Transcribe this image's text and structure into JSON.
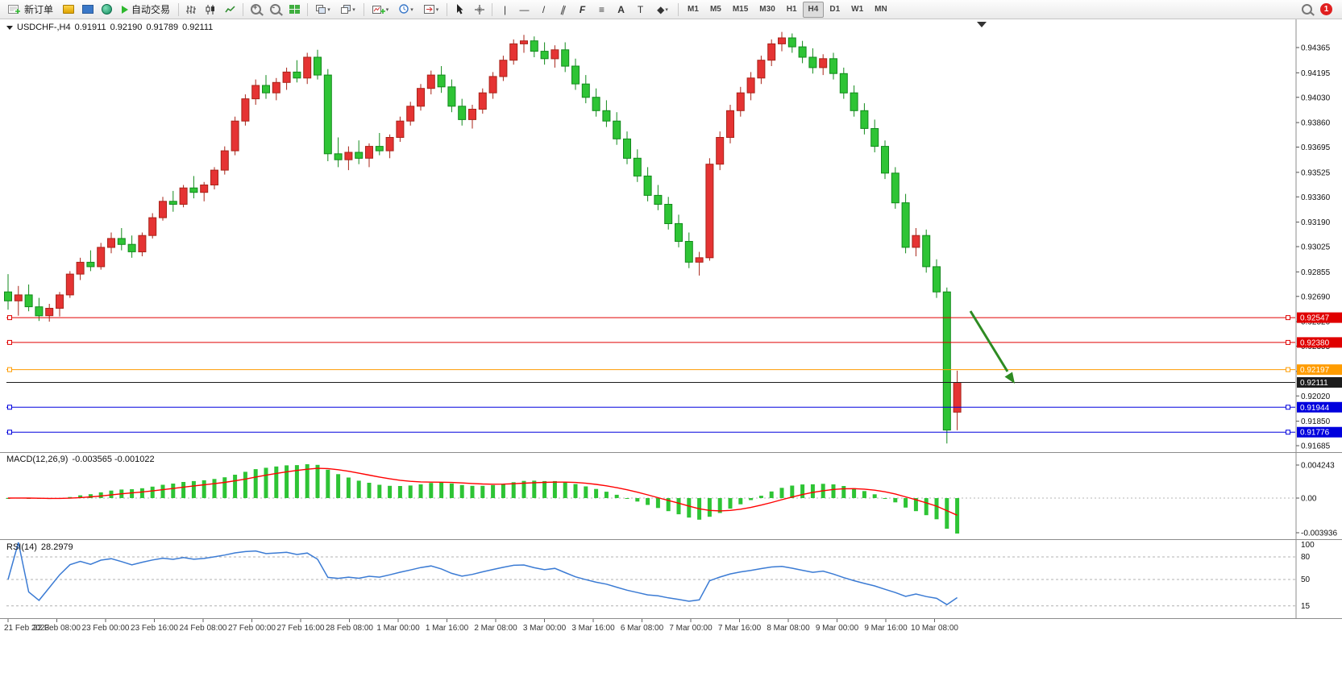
{
  "toolbar": {
    "new_order_label": "新订单",
    "auto_trading_label": "自动交易",
    "timeframes": [
      "M1",
      "M5",
      "M15",
      "M30",
      "H1",
      "H4",
      "D1",
      "W1",
      "MN"
    ],
    "active_timeframe": "H4",
    "notification_count": "1"
  },
  "chart": {
    "symbol_label": "USDCHF-,H4",
    "ohlc": {
      "open": "0.91911",
      "high": "0.92190",
      "low": "0.91789",
      "close": "0.92111"
    },
    "price_axis": {
      "top_value": 0.94365,
      "bottom_value": 0.91685,
      "ticks": [
        "0.94365",
        "0.94195",
        "0.94030",
        "0.93860",
        "0.93695",
        "0.93525",
        "0.93360",
        "0.93190",
        "0.93025",
        "0.92855",
        "0.92690",
        "0.92520",
        "0.92355",
        "0.92185",
        "0.92020",
        "0.91850",
        "0.91685"
      ]
    },
    "lines": [
      {
        "price": 0.92547,
        "label": "0.92547",
        "color": "#e00000",
        "kind": "horizontal-line"
      },
      {
        "price": 0.9238,
        "label": "0.92380",
        "color": "#e00000",
        "kind": "horizontal-line"
      },
      {
        "price": 0.92197,
        "label": "0.92197",
        "color": "#ff9c00",
        "kind": "horizontal-line"
      },
      {
        "price": 0.92111,
        "label": "0.92111",
        "color": "#1c1c1c",
        "kind": "current-price"
      },
      {
        "price": 0.91944,
        "label": "0.91944",
        "color": "#0000dd",
        "kind": "horizontal-line"
      },
      {
        "price": 0.91776,
        "label": "0.91776",
        "color": "#0000dd",
        "kind": "horizontal-line"
      }
    ],
    "arrow": {
      "color": "#2e8b22"
    },
    "time_axis": [
      "21 Feb 2023",
      "22 Feb 08:00",
      "23 Feb 00:00",
      "23 Feb 16:00",
      "24 Feb 08:00",
      "27 Feb 00:00",
      "27 Feb 16:00",
      "28 Feb 08:00",
      "1 Mar 00:00",
      "1 Mar 16:00",
      "2 Mar 08:00",
      "3 Mar 00:00",
      "3 Mar 16:00",
      "6 Mar 08:00",
      "7 Mar 00:00",
      "7 Mar 16:00",
      "8 Mar 08:00",
      "9 Mar 00:00",
      "9 Mar 16:00",
      "10 Mar 08:00"
    ]
  },
  "indicators": {
    "macd": {
      "name": "MACD(12,26,9)",
      "values": "-0.003565 -0.001022",
      "axis_ticks": [
        "0.004243",
        "0.00",
        "-0.003936"
      ],
      "fast": 12,
      "slow": 26,
      "signal_period": 9,
      "histogram_color": "#2ec435",
      "signal_color": "#ff0000"
    },
    "rsi": {
      "name": "RSI(14)",
      "value": "28.2979",
      "axis_ticks": [
        "100",
        "80",
        "50",
        "15"
      ],
      "period": 14,
      "levels": [
        80,
        50,
        15
      ],
      "line_color": "#3b7bd4"
    }
  },
  "chart_data": {
    "type": "candlestick",
    "symbol": "USDCHF-",
    "timeframe": "H4",
    "up_color": "#e53333",
    "down_color": "#2ec435",
    "candles": [
      [
        0.9272,
        0.9284,
        0.926,
        0.9266
      ],
      [
        0.9266,
        0.9276,
        0.9256,
        0.927
      ],
      [
        0.927,
        0.9277,
        0.9259,
        0.9262
      ],
      [
        0.9262,
        0.9268,
        0.92525,
        0.9256
      ],
      [
        0.9256,
        0.9264,
        0.9252,
        0.9261
      ],
      [
        0.9261,
        0.9272,
        0.92555,
        0.927
      ],
      [
        0.927,
        0.9286,
        0.9268,
        0.9284
      ],
      [
        0.9284,
        0.9295,
        0.928,
        0.9292
      ],
      [
        0.9292,
        0.93,
        0.9286,
        0.9289
      ],
      [
        0.9289,
        0.9305,
        0.9287,
        0.9302
      ],
      [
        0.9302,
        0.9312,
        0.9298,
        0.9308
      ],
      [
        0.9308,
        0.9315,
        0.93,
        0.9304
      ],
      [
        0.9304,
        0.931,
        0.9295,
        0.9299
      ],
      [
        0.9299,
        0.9312,
        0.9296,
        0.931
      ],
      [
        0.931,
        0.9325,
        0.9308,
        0.9322
      ],
      [
        0.9322,
        0.9336,
        0.932,
        0.9333
      ],
      [
        0.9333,
        0.934,
        0.9326,
        0.9331
      ],
      [
        0.9331,
        0.9344,
        0.9329,
        0.9342
      ],
      [
        0.9342,
        0.935,
        0.9335,
        0.9339
      ],
      [
        0.9339,
        0.9346,
        0.9333,
        0.9344
      ],
      [
        0.9344,
        0.9356,
        0.9341,
        0.9354
      ],
      [
        0.9354,
        0.937,
        0.9351,
        0.9367
      ],
      [
        0.9367,
        0.939,
        0.9364,
        0.9387
      ],
      [
        0.9387,
        0.9405,
        0.9384,
        0.9402
      ],
      [
        0.9402,
        0.9415,
        0.9398,
        0.9411
      ],
      [
        0.9411,
        0.9418,
        0.9402,
        0.9406
      ],
      [
        0.9406,
        0.9416,
        0.9401,
        0.9413
      ],
      [
        0.9413,
        0.9423,
        0.9408,
        0.942
      ],
      [
        0.942,
        0.9428,
        0.9413,
        0.9416
      ],
      [
        0.9416,
        0.9433,
        0.9412,
        0.943
      ],
      [
        0.943,
        0.9435,
        0.9415,
        0.9418
      ],
      [
        0.9418,
        0.9422,
        0.936,
        0.9365
      ],
      [
        0.9365,
        0.9376,
        0.9356,
        0.9361
      ],
      [
        0.9361,
        0.937,
        0.9354,
        0.9366
      ],
      [
        0.9366,
        0.9374,
        0.9358,
        0.9362
      ],
      [
        0.9362,
        0.9372,
        0.9356,
        0.937
      ],
      [
        0.937,
        0.9379,
        0.9364,
        0.9367
      ],
      [
        0.9367,
        0.9378,
        0.9362,
        0.9376
      ],
      [
        0.9376,
        0.939,
        0.9373,
        0.9387
      ],
      [
        0.9387,
        0.94,
        0.9384,
        0.9397
      ],
      [
        0.9397,
        0.9412,
        0.9394,
        0.9409
      ],
      [
        0.9409,
        0.9421,
        0.9405,
        0.9418
      ],
      [
        0.9418,
        0.9424,
        0.9406,
        0.941
      ],
      [
        0.941,
        0.9415,
        0.9393,
        0.9397
      ],
      [
        0.9397,
        0.9402,
        0.9384,
        0.9388
      ],
      [
        0.9388,
        0.9398,
        0.9382,
        0.9395
      ],
      [
        0.9395,
        0.9409,
        0.9392,
        0.9406
      ],
      [
        0.9406,
        0.942,
        0.9402,
        0.9417
      ],
      [
        0.9417,
        0.9431,
        0.9414,
        0.9428
      ],
      [
        0.9428,
        0.9442,
        0.9425,
        0.9439
      ],
      [
        0.9439,
        0.9445,
        0.9433,
        0.9441
      ],
      [
        0.9441,
        0.9444,
        0.943,
        0.9434
      ],
      [
        0.9434,
        0.944,
        0.9425,
        0.9429
      ],
      [
        0.9429,
        0.9438,
        0.9423,
        0.9435
      ],
      [
        0.9435,
        0.944,
        0.942,
        0.9424
      ],
      [
        0.9424,
        0.9429,
        0.9408,
        0.9412
      ],
      [
        0.9412,
        0.9418,
        0.9399,
        0.9403
      ],
      [
        0.9403,
        0.9409,
        0.939,
        0.9394
      ],
      [
        0.9394,
        0.9401,
        0.9383,
        0.9387
      ],
      [
        0.9387,
        0.9393,
        0.9371,
        0.9375
      ],
      [
        0.9375,
        0.938,
        0.9358,
        0.9362
      ],
      [
        0.9362,
        0.9368,
        0.9346,
        0.935
      ],
      [
        0.935,
        0.9356,
        0.9333,
        0.9337
      ],
      [
        0.9337,
        0.9344,
        0.9327,
        0.9331
      ],
      [
        0.9331,
        0.9336,
        0.9314,
        0.9318
      ],
      [
        0.9318,
        0.9324,
        0.9302,
        0.9306
      ],
      [
        0.9306,
        0.9312,
        0.9288,
        0.9292
      ],
      [
        0.9292,
        0.9299,
        0.9283,
        0.9295
      ],
      [
        0.9295,
        0.9362,
        0.9293,
        0.9358
      ],
      [
        0.9358,
        0.938,
        0.9354,
        0.9376
      ],
      [
        0.9376,
        0.9398,
        0.9372,
        0.9394
      ],
      [
        0.9394,
        0.941,
        0.939,
        0.9406
      ],
      [
        0.9406,
        0.942,
        0.9401,
        0.9416
      ],
      [
        0.9416,
        0.9431,
        0.9412,
        0.9428
      ],
      [
        0.9428,
        0.9442,
        0.9424,
        0.9439
      ],
      [
        0.9439,
        0.9447,
        0.9434,
        0.9443
      ],
      [
        0.9443,
        0.9446,
        0.9433,
        0.9437
      ],
      [
        0.9437,
        0.9441,
        0.9426,
        0.943
      ],
      [
        0.943,
        0.9436,
        0.9419,
        0.9423
      ],
      [
        0.9423,
        0.9432,
        0.9418,
        0.9429
      ],
      [
        0.9429,
        0.9433,
        0.9415,
        0.9419
      ],
      [
        0.9419,
        0.9423,
        0.9402,
        0.9406
      ],
      [
        0.9406,
        0.9411,
        0.939,
        0.9394
      ],
      [
        0.9394,
        0.9399,
        0.9378,
        0.9382
      ],
      [
        0.9382,
        0.9388,
        0.9366,
        0.937
      ],
      [
        0.937,
        0.9374,
        0.9348,
        0.9352
      ],
      [
        0.9352,
        0.9356,
        0.9328,
        0.9332
      ],
      [
        0.9332,
        0.9338,
        0.9298,
        0.9302
      ],
      [
        0.9302,
        0.9315,
        0.9296,
        0.931
      ],
      [
        0.931,
        0.9314,
        0.9285,
        0.9289
      ],
      [
        0.9289,
        0.9294,
        0.9268,
        0.9272
      ],
      [
        0.9272,
        0.9275,
        0.917,
        0.9179
      ],
      [
        0.91911,
        0.9219,
        0.91789,
        0.92111
      ]
    ]
  }
}
